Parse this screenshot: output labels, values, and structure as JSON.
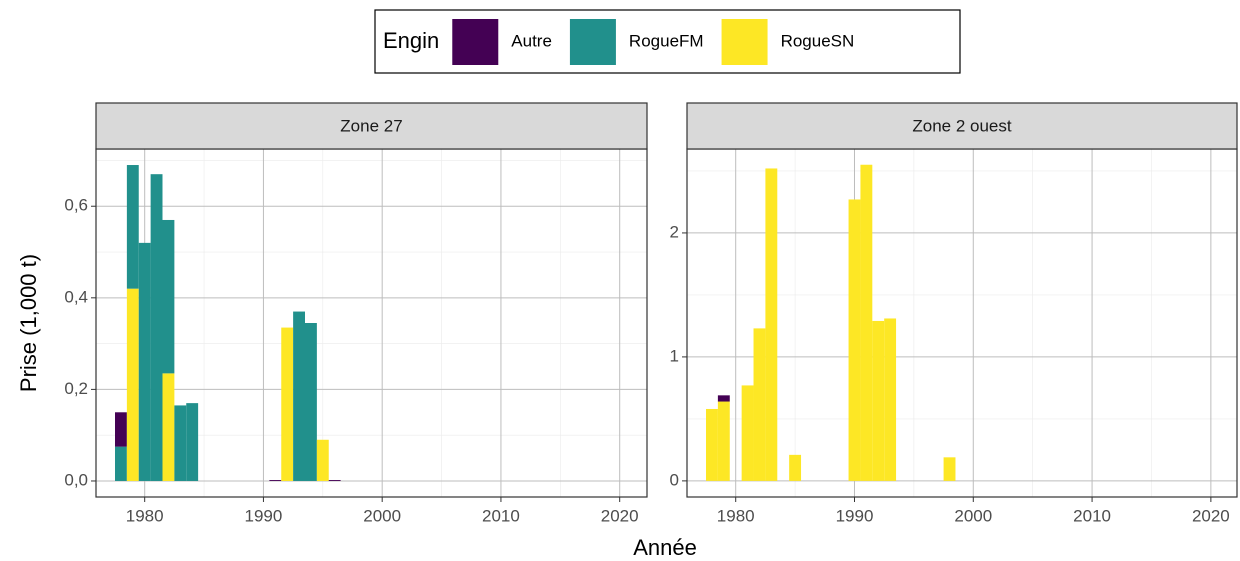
{
  "legend_title": "Engin",
  "x_label": "Année",
  "y_label": "Prise  (1,000 t)",
  "chart_data": [
    {
      "type": "bar",
      "stacked": true,
      "title": "Zone 27",
      "x": [
        1978,
        1979,
        1980,
        1981,
        1982,
        1983,
        1984,
        1985,
        1986,
        1987,
        1988,
        1989,
        1990,
        1991,
        1992,
        1993,
        1994,
        1995,
        1996,
        1997,
        1998
      ],
      "series": [
        {
          "name": "Autre",
          "color": "#440154",
          "values": [
            0.075,
            0,
            0,
            0,
            0,
            0,
            0,
            0,
            0,
            0,
            0,
            0,
            0,
            0.002,
            0,
            0,
            0,
            0,
            0.002,
            0,
            0
          ]
        },
        {
          "name": "RogueFM",
          "color": "#21908c",
          "values": [
            0.075,
            0.27,
            0.52,
            0.67,
            0.335,
            0.165,
            0.17,
            0,
            0,
            0,
            0,
            0,
            0,
            0,
            0,
            0.37,
            0.345,
            0,
            0,
            0,
            0
          ]
        },
        {
          "name": "RogueSN",
          "color": "#fde725",
          "values": [
            0,
            0.42,
            0,
            0,
            0.235,
            0,
            0,
            0,
            0,
            0,
            0,
            0,
            0,
            0,
            0.335,
            0,
            0,
            0.09,
            0,
            0,
            0
          ]
        }
      ],
      "xlim": [
        1975.9,
        2022.3
      ],
      "xticks": [
        1980,
        1990,
        2000,
        2010,
        2020
      ],
      "ylim": [
        -0.035,
        0.725
      ],
      "yticks": [
        {
          "value": 0,
          "label": "0,0"
        },
        {
          "value": 0.2,
          "label": "0,2"
        },
        {
          "value": 0.4,
          "label": "0,4"
        },
        {
          "value": 0.6,
          "label": "0,6"
        }
      ],
      "grid": true
    },
    {
      "type": "bar",
      "stacked": true,
      "title": "Zone 2 ouest",
      "x": [
        1978,
        1979,
        1980,
        1981,
        1982,
        1983,
        1984,
        1985,
        1986,
        1987,
        1988,
        1989,
        1990,
        1991,
        1992,
        1993,
        1994,
        1995,
        1996,
        1997,
        1998
      ],
      "series": [
        {
          "name": "Autre",
          "color": "#440154",
          "values": [
            0,
            0.05,
            0,
            0,
            0,
            0,
            0,
            0,
            0,
            0,
            0,
            0,
            0,
            0,
            0,
            0,
            0,
            0,
            0,
            0,
            0
          ]
        },
        {
          "name": "RogueFM",
          "color": "#21908c",
          "values": [
            0,
            0,
            0,
            0,
            0,
            0,
            0,
            0,
            0,
            0,
            0,
            0,
            0,
            0,
            0,
            0,
            0,
            0,
            0,
            0,
            0
          ]
        },
        {
          "name": "RogueSN",
          "color": "#fde725",
          "values": [
            0.58,
            0.64,
            0,
            0.77,
            1.23,
            2.52,
            0,
            0.21,
            0,
            0,
            0,
            0,
            2.27,
            2.55,
            1.29,
            1.31,
            0,
            0,
            0,
            0,
            0.19
          ]
        }
      ],
      "xlim": [
        1975.9,
        2022.2
      ],
      "xticks": [
        1980,
        1990,
        2000,
        2010,
        2020
      ],
      "ylim": [
        -0.13,
        2.677
      ],
      "yticks": [
        0,
        1,
        2
      ],
      "grid": true
    }
  ]
}
